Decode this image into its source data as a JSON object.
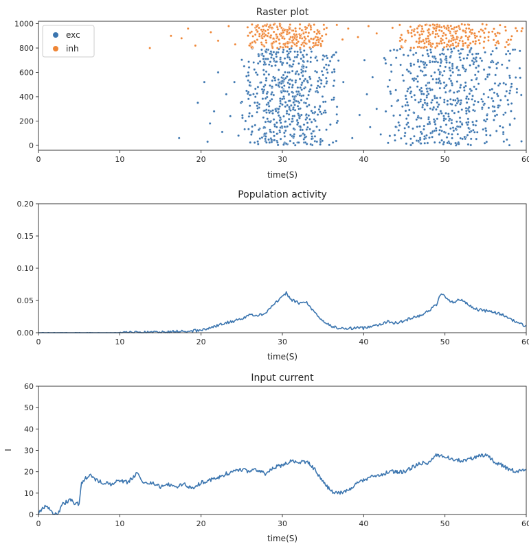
{
  "chart_data": [
    {
      "type": "scatter",
      "title": "Raster plot",
      "xlabel": "time(S)",
      "ylabel": "",
      "xlim": [
        0,
        60
      ],
      "ylim": [
        -40,
        1020
      ],
      "xticks": [
        0,
        10,
        20,
        30,
        40,
        50,
        60
      ],
      "xtick_labels": [
        "0",
        "10",
        "20",
        "30",
        "40",
        "50",
        "60"
      ],
      "yticks": [
        0,
        200,
        400,
        600,
        800,
        1000
      ],
      "ytick_labels": [
        "0",
        "200",
        "400",
        "600",
        "800",
        "1000"
      ],
      "legend": {
        "placement": "top-left",
        "entries": [
          "exc",
          "inh"
        ]
      },
      "colors": {
        "exc": "#3b75af",
        "inh": "#ef8636"
      },
      "series": [
        {
          "name": "exc",
          "neuron_range": [
            0,
            799
          ],
          "points": [
            [
              17.3,
              60
            ],
            [
              19.6,
              350
            ],
            [
              20.4,
              520
            ],
            [
              21.1,
              180
            ],
            [
              20.8,
              30
            ],
            [
              21.6,
              280
            ],
            [
              22.1,
              600
            ],
            [
              22.6,
              110
            ],
            [
              23.1,
              420
            ],
            [
              23.6,
              240
            ],
            [
              24.1,
              520
            ],
            [
              24.6,
              80
            ],
            [
              24.9,
              350
            ],
            [
              25.3,
              650
            ],
            [
              40.1,
              700
            ],
            [
              40.4,
              420
            ],
            [
              40.8,
              150
            ],
            [
              41.1,
              560
            ],
            [
              41.6,
              300
            ],
            [
              42.1,
              90
            ],
            [
              39.5,
              250
            ],
            [
              38.6,
              60
            ],
            [
              37.5,
              520
            ],
            [
              36.8,
              200
            ],
            [
              36.2,
              740
            ]
          ],
          "dense_bursts": [
            {
              "t_start": 25.0,
              "t_end": 37.0,
              "center": 30.5,
              "width": 3.5
            },
            {
              "t_start": 42.5,
              "t_end": 60.0,
              "center": 50.5,
              "width": 4.5
            }
          ]
        },
        {
          "name": "inh",
          "neuron_range": [
            800,
            999
          ],
          "points": [
            [
              13.7,
              800
            ],
            [
              16.3,
              900
            ],
            [
              17.6,
              880
            ],
            [
              18.4,
              960
            ],
            [
              19.3,
              820
            ],
            [
              21.2,
              930
            ],
            [
              22.1,
              860
            ],
            [
              23.4,
              980
            ],
            [
              24.2,
              830
            ],
            [
              38.1,
              960
            ],
            [
              39.3,
              890
            ],
            [
              40.6,
              980
            ],
            [
              41.6,
              920
            ],
            [
              36.7,
              990
            ],
            [
              37.4,
              870
            ]
          ],
          "dense_bursts": [
            {
              "t_start": 25.5,
              "t_end": 35.5,
              "center": 30.5,
              "width": 3.2
            },
            {
              "t_start": 43.5,
              "t_end": 60.0,
              "center": 50.5,
              "width": 4.0
            }
          ]
        }
      ]
    },
    {
      "type": "line",
      "title": "Population activity",
      "xlabel": "time(S)",
      "ylabel": "",
      "xlim": [
        0,
        60
      ],
      "ylim": [
        0,
        0.2
      ],
      "xticks": [
        0,
        10,
        20,
        30,
        40,
        50,
        60
      ],
      "xtick_labels": [
        "0",
        "10",
        "20",
        "30",
        "40",
        "50",
        "60"
      ],
      "yticks": [
        0,
        0.05,
        0.1,
        0.15,
        0.2
      ],
      "ytick_labels": [
        "0.00",
        "0.05",
        "0.10",
        "0.15",
        "0.20"
      ],
      "color": "#3b75af",
      "series": [
        {
          "x": [
            0,
            5,
            10,
            15,
            18,
            20,
            21,
            22,
            23,
            24,
            25,
            26,
            27,
            28,
            29,
            30,
            30.5,
            31,
            32,
            33,
            34,
            35,
            36,
            37,
            38,
            39,
            40,
            41,
            42,
            43,
            44,
            45,
            46,
            47,
            48,
            49,
            49.5,
            50,
            51,
            52,
            53,
            54,
            55,
            56,
            57,
            58,
            59,
            60
          ],
          "values": [
            0,
            0,
            0,
            0.001,
            0.002,
            0.004,
            0.007,
            0.011,
            0.015,
            0.018,
            0.022,
            0.028,
            0.026,
            0.032,
            0.045,
            0.055,
            0.062,
            0.052,
            0.046,
            0.047,
            0.03,
            0.018,
            0.01,
            0.007,
            0.006,
            0.008,
            0.007,
            0.011,
            0.013,
            0.017,
            0.015,
            0.018,
            0.024,
            0.027,
            0.034,
            0.044,
            0.062,
            0.055,
            0.047,
            0.052,
            0.042,
            0.036,
            0.034,
            0.032,
            0.028,
            0.022,
            0.015,
            0.01
          ]
        }
      ]
    },
    {
      "type": "line",
      "title": "Input current",
      "xlabel": "time(S)",
      "ylabel": "I",
      "xlim": [
        0,
        60
      ],
      "ylim": [
        0,
        60
      ],
      "xticks": [
        0,
        10,
        20,
        30,
        40,
        50,
        60
      ],
      "xtick_labels": [
        "0",
        "10",
        "20",
        "30",
        "40",
        "50",
        "60"
      ],
      "yticks": [
        0,
        10,
        20,
        30,
        40,
        50,
        60
      ],
      "ytick_labels": [
        "0",
        "10",
        "20",
        "30",
        "40",
        "50",
        "60"
      ],
      "color": "#3b75af",
      "series": [
        {
          "x": [
            0,
            0.5,
            1,
            1.5,
            2,
            2.5,
            3,
            3.5,
            4,
            4.5,
            5,
            5.3,
            5.8,
            6.3,
            7,
            8,
            9,
            10,
            11,
            12,
            12.5,
            13,
            14,
            15,
            16,
            17,
            18,
            19,
            20,
            21,
            22,
            23,
            24,
            25,
            26,
            27,
            28,
            29,
            30,
            31,
            32,
            33,
            34,
            35,
            36,
            37,
            38,
            39,
            40,
            41,
            42,
            43,
            44,
            45,
            46,
            47,
            48,
            49,
            50,
            51,
            52,
            53,
            54,
            55,
            56,
            57,
            58,
            59,
            60
          ],
          "values": [
            0,
            3,
            4,
            2,
            0,
            1,
            5,
            6,
            7,
            5,
            5,
            15,
            17,
            19,
            16,
            15,
            14,
            16,
            15,
            19,
            18,
            14,
            15,
            13,
            14,
            13,
            14,
            12,
            15,
            16,
            17,
            19,
            20,
            21,
            20,
            21,
            19,
            22,
            23,
            25,
            24,
            25,
            21,
            15,
            11,
            10,
            11,
            14,
            16,
            18,
            18,
            20,
            20,
            20,
            22,
            24,
            24,
            28,
            27,
            26,
            25,
            26,
            27,
            28,
            25,
            23,
            21,
            20,
            21
          ]
        }
      ]
    }
  ]
}
